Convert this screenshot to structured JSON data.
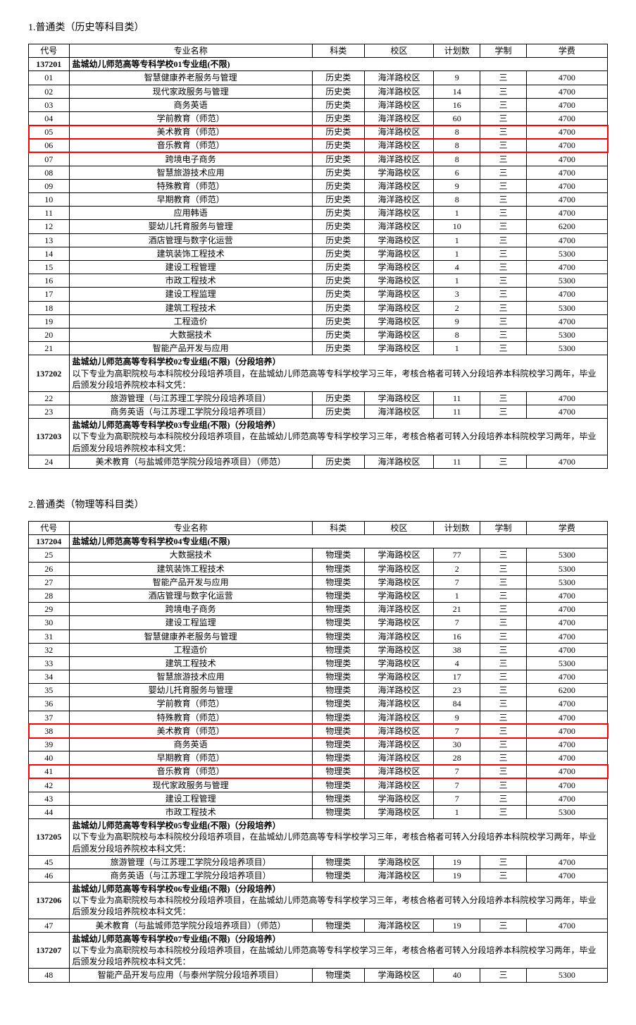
{
  "sections": [
    {
      "id": "s1",
      "title": "1.普通类（历史等科目类）"
    },
    {
      "id": "s2",
      "title": "2.普通类（物理等科目类）"
    }
  ],
  "columns": {
    "code": "代号",
    "name": "专业名称",
    "cat": "科类",
    "campus": "校区",
    "plan": "计划数",
    "year": "学制",
    "fee": "学费"
  },
  "table1": {
    "groups": [
      {
        "code": "137201",
        "title": "盐城幼儿师范高等专科学校01专业组(不限)",
        "desc": "",
        "rows": [
          {
            "code": "01",
            "name": "智慧健康养老服务与管理",
            "cat": "历史类",
            "campus": "海洋路校区",
            "plan": "9",
            "year": "三",
            "fee": "4700"
          },
          {
            "code": "02",
            "name": "现代家政服务与管理",
            "cat": "历史类",
            "campus": "海洋路校区",
            "plan": "14",
            "year": "三",
            "fee": "4700"
          },
          {
            "code": "03",
            "name": "商务英语",
            "cat": "历史类",
            "campus": "海洋路校区",
            "plan": "16",
            "year": "三",
            "fee": "4700"
          },
          {
            "code": "04",
            "name": "学前教育（师范）",
            "cat": "历史类",
            "campus": "海洋路校区",
            "plan": "60",
            "year": "三",
            "fee": "4700"
          },
          {
            "code": "05",
            "name": "美术教育（师范）",
            "cat": "历史类",
            "campus": "海洋路校区",
            "plan": "8",
            "year": "三",
            "fee": "4700",
            "hl": true
          },
          {
            "code": "06",
            "name": "音乐教育（师范）",
            "cat": "历史类",
            "campus": "海洋路校区",
            "plan": "8",
            "year": "三",
            "fee": "4700",
            "hl": true
          },
          {
            "code": "07",
            "name": "跨境电子商务",
            "cat": "历史类",
            "campus": "海洋路校区",
            "plan": "8",
            "year": "三",
            "fee": "4700"
          },
          {
            "code": "08",
            "name": "智慧旅游技术应用",
            "cat": "历史类",
            "campus": "学海路校区",
            "plan": "6",
            "year": "三",
            "fee": "4700"
          },
          {
            "code": "09",
            "name": "特殊教育（师范）",
            "cat": "历史类",
            "campus": "海洋路校区",
            "plan": "9",
            "year": "三",
            "fee": "4700"
          },
          {
            "code": "10",
            "name": "早期教育（师范）",
            "cat": "历史类",
            "campus": "海洋路校区",
            "plan": "8",
            "year": "三",
            "fee": "4700"
          },
          {
            "code": "11",
            "name": "应用韩语",
            "cat": "历史类",
            "campus": "海洋路校区",
            "plan": "1",
            "year": "三",
            "fee": "4700"
          },
          {
            "code": "12",
            "name": "婴幼儿托育服务与管理",
            "cat": "历史类",
            "campus": "海洋路校区",
            "plan": "10",
            "year": "三",
            "fee": "6200"
          },
          {
            "code": "13",
            "name": "酒店管理与数字化运营",
            "cat": "历史类",
            "campus": "学海路校区",
            "plan": "1",
            "year": "三",
            "fee": "4700"
          },
          {
            "code": "14",
            "name": "建筑装饰工程技术",
            "cat": "历史类",
            "campus": "学海路校区",
            "plan": "1",
            "year": "三",
            "fee": "5300"
          },
          {
            "code": "15",
            "name": "建设工程管理",
            "cat": "历史类",
            "campus": "学海路校区",
            "plan": "4",
            "year": "三",
            "fee": "4700"
          },
          {
            "code": "16",
            "name": "市政工程技术",
            "cat": "历史类",
            "campus": "学海路校区",
            "plan": "1",
            "year": "三",
            "fee": "5300"
          },
          {
            "code": "17",
            "name": "建设工程监理",
            "cat": "历史类",
            "campus": "学海路校区",
            "plan": "3",
            "year": "三",
            "fee": "4700"
          },
          {
            "code": "18",
            "name": "建筑工程技术",
            "cat": "历史类",
            "campus": "学海路校区",
            "plan": "2",
            "year": "三",
            "fee": "5300"
          },
          {
            "code": "19",
            "name": "工程造价",
            "cat": "历史类",
            "campus": "学海路校区",
            "plan": "9",
            "year": "三",
            "fee": "4700"
          },
          {
            "code": "20",
            "name": "大数据技术",
            "cat": "历史类",
            "campus": "学海路校区",
            "plan": "8",
            "year": "三",
            "fee": "5300"
          },
          {
            "code": "21",
            "name": "智能产品开发与应用",
            "cat": "历史类",
            "campus": "学海路校区",
            "plan": "1",
            "year": "三",
            "fee": "5300"
          }
        ]
      },
      {
        "code": "137202",
        "title": "盐城幼儿师范高等专科学校02专业组(不限)（分段培养）",
        "desc": "以下专业为高职院校与本科院校分段培养项目，在盐城幼儿师范高等专科学校学习三年，考核合格者可转入分段培养本科院校学习两年，毕业后颁发分段培养院校本科文凭：",
        "rows": [
          {
            "code": "22",
            "name": "旅游管理（与江苏理工学院分段培养项目）",
            "cat": "历史类",
            "campus": "学海路校区",
            "plan": "11",
            "year": "三",
            "fee": "4700"
          },
          {
            "code": "23",
            "name": "商务英语（与江苏理工学院分段培养项目）",
            "cat": "历史类",
            "campus": "海洋路校区",
            "plan": "11",
            "year": "三",
            "fee": "4700"
          }
        ]
      },
      {
        "code": "137203",
        "title": "盐城幼儿师范高等专科学校03专业组(不限)（分段培养）",
        "desc": "以下专业为高职院校与本科院校分段培养项目，在盐城幼儿师范高等专科学校学习三年，考核合格者可转入分段培养本科院校学习两年，毕业后颁发分段培养院校本科文凭：",
        "rows": [
          {
            "code": "24",
            "name": "美术教育（与盐城师范学院分段培养项目）（师范）",
            "cat": "历史类",
            "campus": "海洋路校区",
            "plan": "11",
            "year": "三",
            "fee": "4700"
          }
        ]
      }
    ]
  },
  "table2": {
    "groups": [
      {
        "code": "137204",
        "title": "盐城幼儿师范高等专科学校04专业组(不限)",
        "desc": "",
        "rows": [
          {
            "code": "25",
            "name": "大数据技术",
            "cat": "物理类",
            "campus": "学海路校区",
            "plan": "77",
            "year": "三",
            "fee": "5300"
          },
          {
            "code": "26",
            "name": "建筑装饰工程技术",
            "cat": "物理类",
            "campus": "学海路校区",
            "plan": "2",
            "year": "三",
            "fee": "5300"
          },
          {
            "code": "27",
            "name": "智能产品开发与应用",
            "cat": "物理类",
            "campus": "学海路校区",
            "plan": "7",
            "year": "三",
            "fee": "5300"
          },
          {
            "code": "28",
            "name": "酒店管理与数字化运营",
            "cat": "物理类",
            "campus": "学海路校区",
            "plan": "1",
            "year": "三",
            "fee": "4700"
          },
          {
            "code": "29",
            "name": "跨境电子商务",
            "cat": "物理类",
            "campus": "海洋路校区",
            "plan": "21",
            "year": "三",
            "fee": "4700"
          },
          {
            "code": "30",
            "name": "建设工程监理",
            "cat": "物理类",
            "campus": "学海路校区",
            "plan": "7",
            "year": "三",
            "fee": "4700"
          },
          {
            "code": "31",
            "name": "智慧健康养老服务与管理",
            "cat": "物理类",
            "campus": "海洋路校区",
            "plan": "16",
            "year": "三",
            "fee": "4700"
          },
          {
            "code": "32",
            "name": "工程造价",
            "cat": "物理类",
            "campus": "学海路校区",
            "plan": "38",
            "year": "三",
            "fee": "4700"
          },
          {
            "code": "33",
            "name": "建筑工程技术",
            "cat": "物理类",
            "campus": "学海路校区",
            "plan": "4",
            "year": "三",
            "fee": "5300"
          },
          {
            "code": "34",
            "name": "智慧旅游技术应用",
            "cat": "物理类",
            "campus": "学海路校区",
            "plan": "17",
            "year": "三",
            "fee": "4700"
          },
          {
            "code": "35",
            "name": "婴幼儿托育服务与管理",
            "cat": "物理类",
            "campus": "海洋路校区",
            "plan": "23",
            "year": "三",
            "fee": "6200"
          },
          {
            "code": "36",
            "name": "学前教育（师范）",
            "cat": "物理类",
            "campus": "海洋路校区",
            "plan": "84",
            "year": "三",
            "fee": "4700"
          },
          {
            "code": "37",
            "name": "特殊教育（师范）",
            "cat": "物理类",
            "campus": "海洋路校区",
            "plan": "9",
            "year": "三",
            "fee": "4700"
          },
          {
            "code": "38",
            "name": "美术教育（师范）",
            "cat": "物理类",
            "campus": "海洋路校区",
            "plan": "7",
            "year": "三",
            "fee": "4700",
            "hl": true
          },
          {
            "code": "39",
            "name": "商务英语",
            "cat": "物理类",
            "campus": "海洋路校区",
            "plan": "30",
            "year": "三",
            "fee": "4700"
          },
          {
            "code": "40",
            "name": "早期教育（师范）",
            "cat": "物理类",
            "campus": "海洋路校区",
            "plan": "28",
            "year": "三",
            "fee": "4700"
          },
          {
            "code": "41",
            "name": "音乐教育（师范）",
            "cat": "物理类",
            "campus": "海洋路校区",
            "plan": "7",
            "year": "三",
            "fee": "4700",
            "hl": true
          },
          {
            "code": "42",
            "name": "现代家政服务与管理",
            "cat": "物理类",
            "campus": "海洋路校区",
            "plan": "7",
            "year": "三",
            "fee": "4700"
          },
          {
            "code": "43",
            "name": "建设工程管理",
            "cat": "物理类",
            "campus": "学海路校区",
            "plan": "7",
            "year": "三",
            "fee": "4700"
          },
          {
            "code": "44",
            "name": "市政工程技术",
            "cat": "物理类",
            "campus": "学海路校区",
            "plan": "1",
            "year": "三",
            "fee": "5300"
          }
        ]
      },
      {
        "code": "137205",
        "title": "盐城幼儿师范高等专科学校05专业组(不限)（分段培养）",
        "desc": "以下专业为高职院校与本科院校分段培养项目，在盐城幼儿师范高等专科学校学习三年，考核合格者可转入分段培养本科院校学习两年，毕业后颁发分段培养院校本科文凭：",
        "rows": [
          {
            "code": "45",
            "name": "旅游管理（与江苏理工学院分段培养项目）",
            "cat": "物理类",
            "campus": "学海路校区",
            "plan": "19",
            "year": "三",
            "fee": "4700"
          },
          {
            "code": "46",
            "name": "商务英语（与江苏理工学院分段培养项目）",
            "cat": "物理类",
            "campus": "海洋路校区",
            "plan": "19",
            "year": "三",
            "fee": "4700"
          }
        ]
      },
      {
        "code": "137206",
        "title": "盐城幼儿师范高等专科学校06专业组(不限)（分段培养）",
        "desc": "以下专业为高职院校与本科院校分段培养项目，在盐城幼儿师范高等专科学校学习三年，考核合格者可转入分段培养本科院校学习两年，毕业后颁发分段培养院校本科文凭：",
        "rows": [
          {
            "code": "47",
            "name": "美术教育（与盐城师范学院分段培养项目）（师范）",
            "cat": "物理类",
            "campus": "海洋路校区",
            "plan": "19",
            "year": "三",
            "fee": "4700"
          }
        ]
      },
      {
        "code": "137207",
        "title": "盐城幼儿师范高等专科学校07专业组(不限)（分段培养）",
        "desc": "以下专业为高职院校与本科院校分段培养项目，在盐城幼儿师范高等专科学校学习三年，考核合格者可转入分段培养本科院校学习两年，毕业后颁发分段培养院校本科文凭：",
        "rows": [
          {
            "code": "48",
            "name": "智能产品开发与应用（与泰州学院分段培养项目）",
            "cat": "物理类",
            "campus": "学海路校区",
            "plan": "40",
            "year": "三",
            "fee": "5300"
          }
        ]
      }
    ]
  }
}
